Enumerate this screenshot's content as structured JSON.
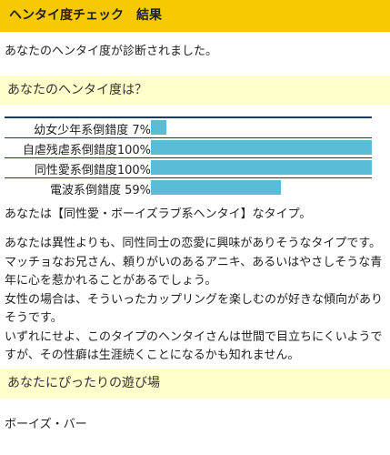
{
  "header": {
    "title": "ヘンタイ度チェック",
    "subtitle": "結果"
  },
  "intro": "あなたのヘンタイ度が診断されました。",
  "section1": {
    "title": "あなたのヘンタイ度は？"
  },
  "stats": [
    {
      "label": "幼女少年系倒錯度",
      "percent_text": " 7%",
      "value": 7
    },
    {
      "label": "自虐残虐系倒錯度",
      "percent_text": "100%",
      "value": 100
    },
    {
      "label": "同性愛系倒錯度",
      "percent_text": "100%",
      "value": 100
    },
    {
      "label": "電波系倒錯度",
      "percent_text": " 59%",
      "value": 59
    }
  ],
  "bar_color": "#5bbcd8",
  "type_line": "あなたは【同性愛・ボーイズラブ系ヘンタイ】なタイプ。",
  "description_lines": [
    "あなたは異性よりも、同性同士の恋愛に興味がありそうなタイプです。",
    "マッチョなお兄さん、頼りがいのあるアニキ、あるいはやさしそうな青",
    "年に心を惹かれることがあるでしょう。",
    "女性の場合は、そういったカップリングを楽しむのが好きな傾向があり",
    "そうです。",
    "いずれにせよ、このタイプのヘンタイさんは世間で目立ちにくいようで",
    "すが、その性癖は生涯続くことになるかも知れません。"
  ],
  "section2": {
    "title": "あなたにぴったりの遊び場"
  },
  "playground": "ボーイズ・バー"
}
